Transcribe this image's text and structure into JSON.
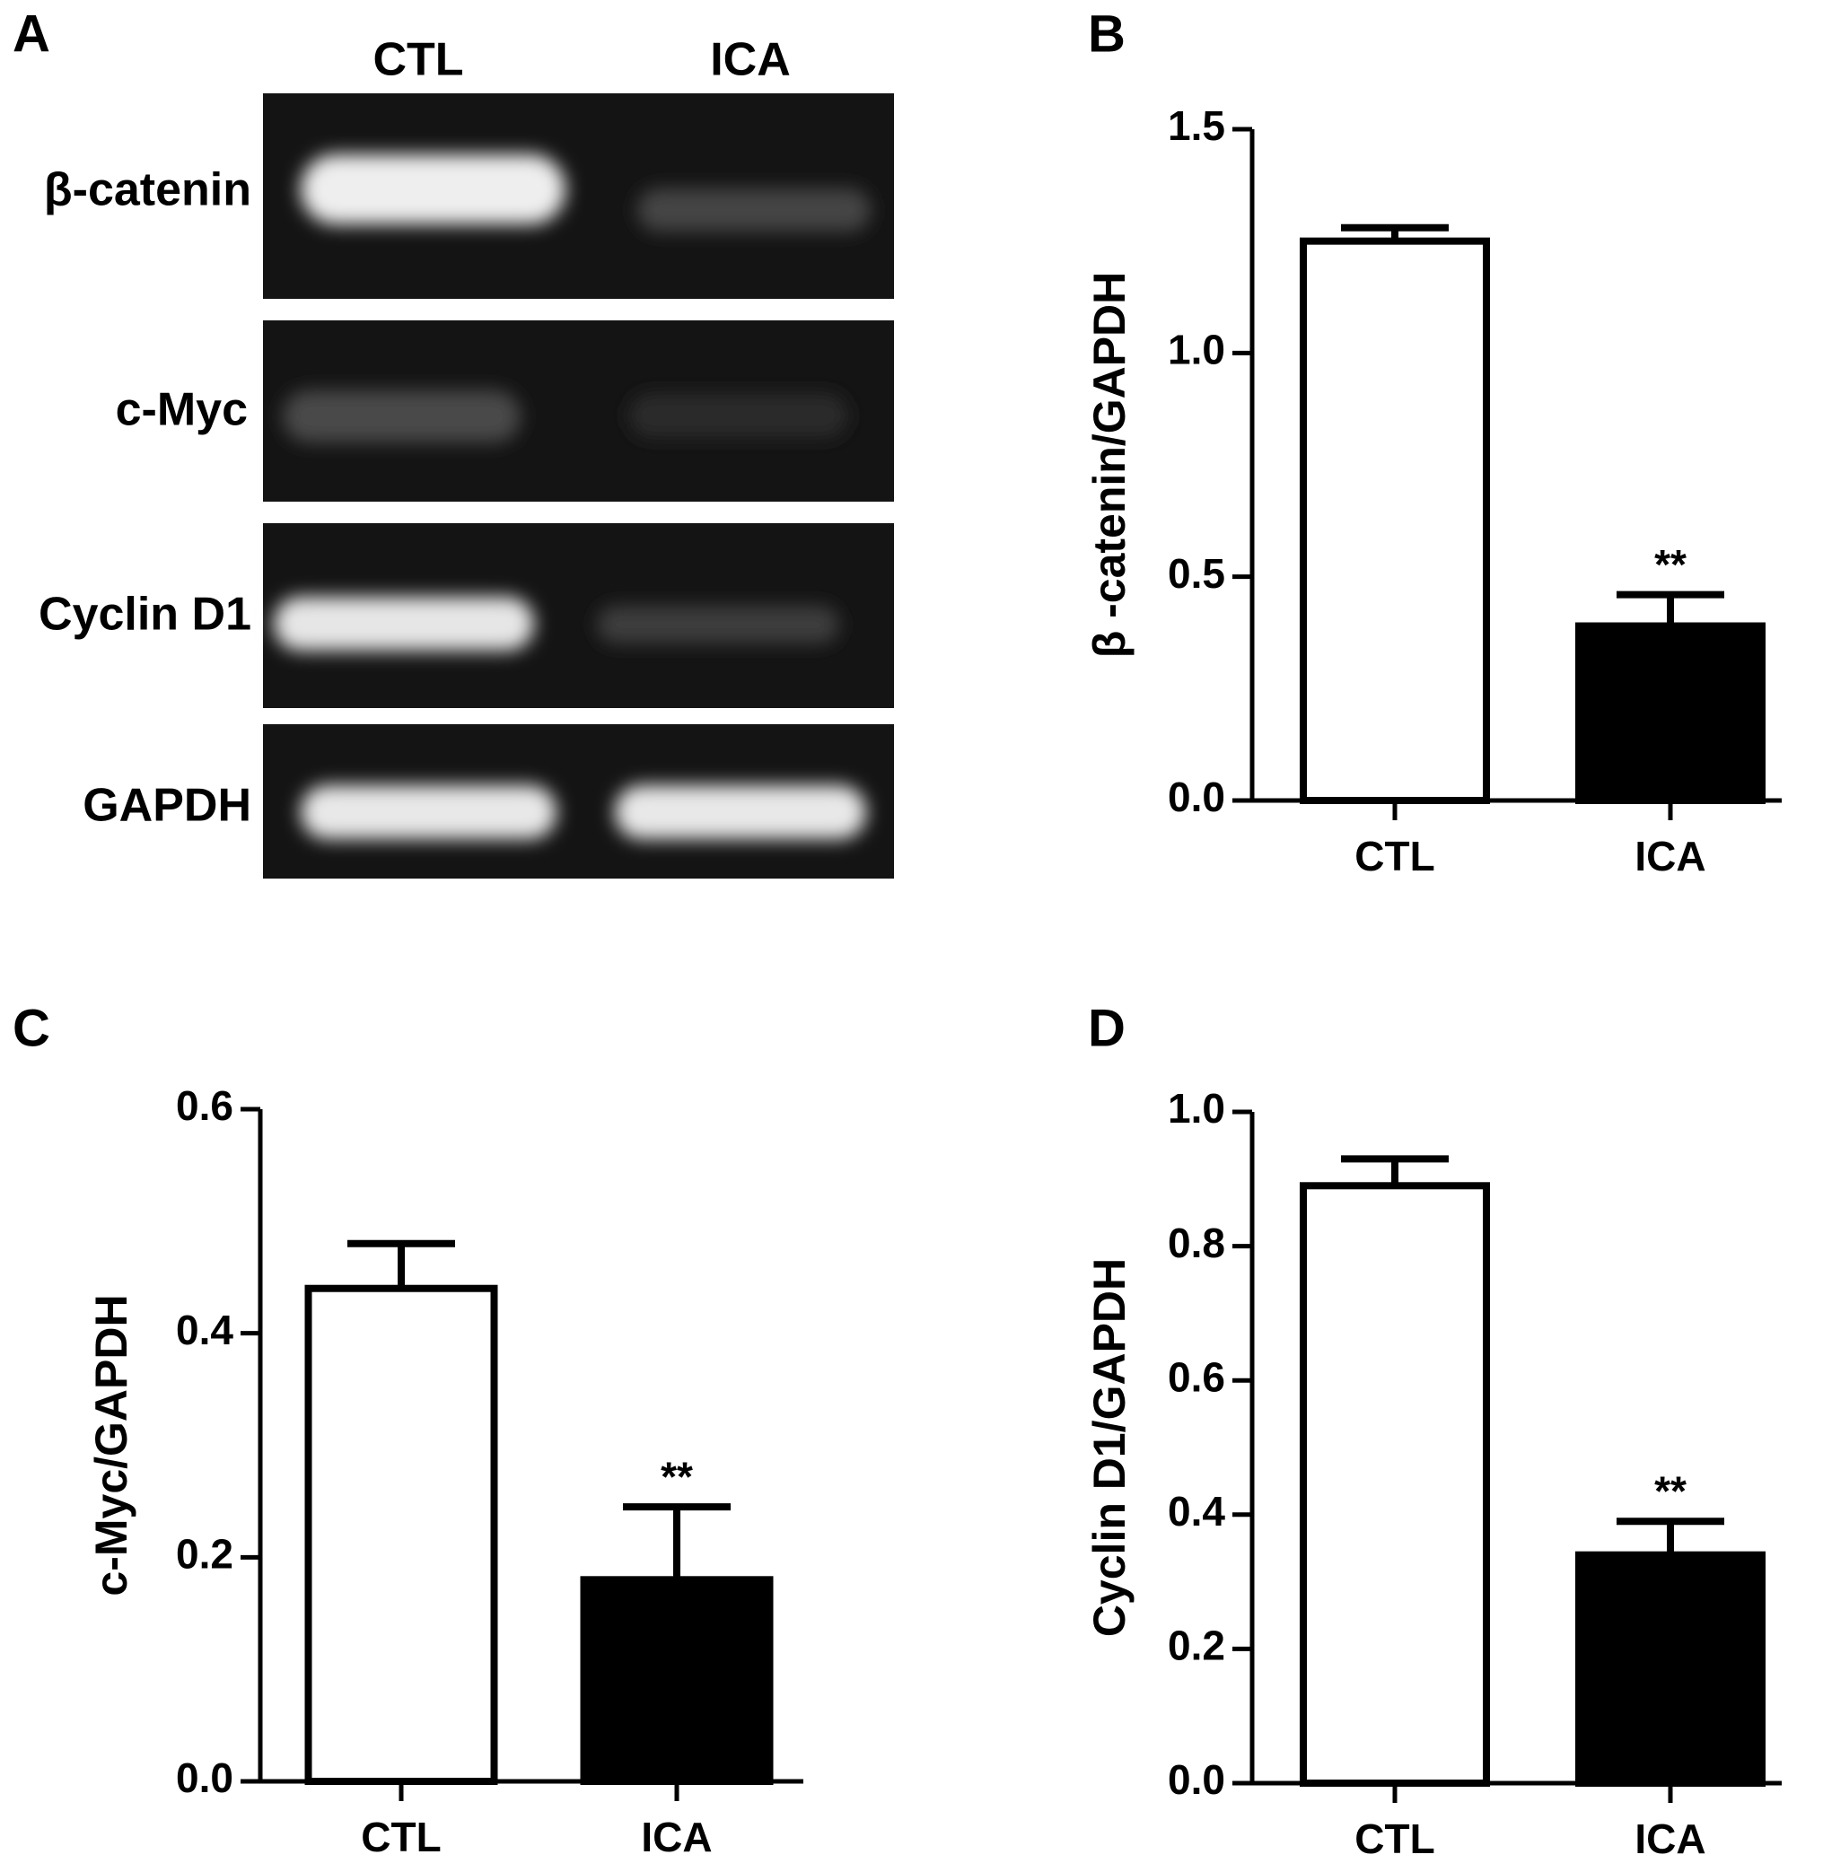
{
  "gel": {
    "panel": "A",
    "lanes": [
      "CTL",
      "ICA"
    ],
    "rows": [
      "β-catenin",
      "c-Myc",
      "Cyclin D1",
      "GAPDH"
    ]
  },
  "chart_data": [
    {
      "type": "bar",
      "panel": "B",
      "y_label": "β -catenin/GAPDH",
      "categories": [
        "CTL",
        "ICA"
      ],
      "values": [
        1.25,
        0.39
      ],
      "errors": [
        0.03,
        0.07
      ],
      "colors": [
        "#ffffff",
        "#000000"
      ],
      "annotation": "**",
      "ylim": [
        0,
        1.5
      ],
      "yticks": [
        {
          "value": 0,
          "label": "0.0"
        },
        0.5,
        {
          "value": 1,
          "label": "1.0"
        },
        1.5
      ]
    },
    {
      "type": "bar",
      "panel": "C",
      "y_label": "c-Myc/GAPDH",
      "categories": [
        "CTL",
        "ICA"
      ],
      "values": [
        0.44,
        0.18
      ],
      "errors": [
        0.04,
        0.065
      ],
      "colors": [
        "#ffffff",
        "#000000"
      ],
      "annotation": "**",
      "ylim": [
        0,
        0.6
      ],
      "yticks": [
        {
          "value": 0,
          "label": "0.0"
        },
        0.2,
        0.4,
        0.6
      ]
    },
    {
      "type": "bar",
      "panel": "D",
      "y_label": "Cyclin D1/GAPDH",
      "categories": [
        "CTL",
        "ICA"
      ],
      "values": [
        0.89,
        0.34
      ],
      "errors": [
        0.04,
        0.05
      ],
      "colors": [
        "#ffffff",
        "#000000"
      ],
      "annotation": "**",
      "ylim": [
        0,
        1.0
      ],
      "yticks": [
        {
          "value": 0,
          "label": "0.0"
        },
        0.2,
        0.4,
        0.6,
        0.8,
        {
          "value": 1,
          "label": "1.0"
        }
      ]
    }
  ]
}
